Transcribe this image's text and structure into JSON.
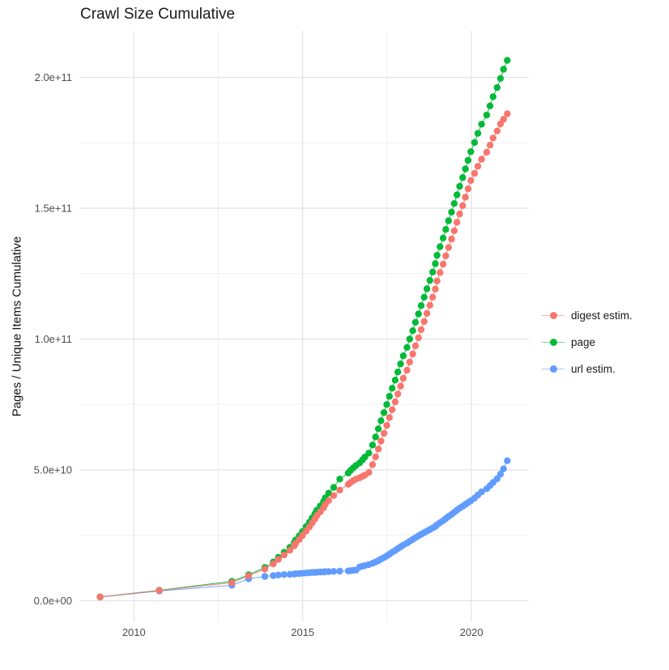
{
  "title": "Crawl Size Cumulative",
  "y_axis_title": "Pages / Unique Items Cumulative",
  "axes": {
    "x_ticks": [
      {
        "label": "2010",
        "year": 2010
      },
      {
        "label": "2015",
        "year": 2015
      },
      {
        "label": "2020",
        "year": 2020
      }
    ],
    "x_minor_years": [
      2012.5,
      2017.5
    ],
    "y_ticks": [
      {
        "label": "0.0e+00",
        "value": 0
      },
      {
        "label": "5.0e+10",
        "value": 50000000000.0
      },
      {
        "label": "1.0e+11",
        "value": 100000000000.0
      },
      {
        "label": "1.5e+11",
        "value": 150000000000.0
      },
      {
        "label": "2.0e+11",
        "value": 200000000000.0
      }
    ],
    "y_minor_values": [
      25000000000.0,
      75000000000.0,
      125000000000.0,
      175000000000.0
    ]
  },
  "legend": [
    {
      "label": "digest estim.",
      "color": "#F8766D"
    },
    {
      "label": "page",
      "color": "#00BA38"
    },
    {
      "label": "url estim.",
      "color": "#619CFF"
    }
  ],
  "colors": {
    "grid_major": "#e3e3e3",
    "grid_minor": "#f0f0f0",
    "axis_text": "#4d4d4d",
    "title_text": "#1a1a1a"
  },
  "chart_data": {
    "type": "line",
    "title": "Crawl Size Cumulative",
    "xlabel": "",
    "ylabel": "Pages / Unique Items Cumulative",
    "x_unit": "year (decimal)",
    "xlim": [
      2008.4,
      2021.7
    ],
    "ylim": [
      0,
      219000000000.0
    ],
    "grid": true,
    "legend_position": "right",
    "marker": "point",
    "series": [
      {
        "name": "url estim.",
        "color": "#619CFF",
        "points": [
          [
            2009.0,
            1400000000.0
          ],
          [
            2010.75,
            3700000000.0
          ],
          [
            2012.9,
            5900000000.0
          ],
          [
            2013.4,
            8400000000.0
          ],
          [
            2013.88,
            9300000000.0
          ],
          [
            2014.13,
            9600000000.0
          ],
          [
            2014.28,
            9800000000.0
          ],
          [
            2014.45,
            10000000000.0
          ],
          [
            2014.62,
            10100000000.0
          ],
          [
            2014.75,
            10200000000.0
          ],
          [
            2014.79,
            10300000000.0
          ],
          [
            2014.9,
            10400000000.0
          ],
          [
            2014.99,
            10500000000.0
          ],
          [
            2015.1,
            10600000000.0
          ],
          [
            2015.2,
            10700000000.0
          ],
          [
            2015.28,
            10800000000.0
          ],
          [
            2015.36,
            10800000000.0
          ],
          [
            2015.42,
            10900000000.0
          ],
          [
            2015.52,
            11000000000.0
          ],
          [
            2015.62,
            11000000000.0
          ],
          [
            2015.67,
            11100000000.0
          ],
          [
            2015.77,
            11100000000.0
          ],
          [
            2015.92,
            11200000000.0
          ],
          [
            2016.1,
            11300000000.0
          ],
          [
            2016.35,
            11400000000.0
          ],
          [
            2016.42,
            11500000000.0
          ],
          [
            2016.5,
            11600000000.0
          ],
          [
            2016.58,
            11700000000.0
          ],
          [
            2016.69,
            12900000000.0
          ],
          [
            2016.77,
            13200000000.0
          ],
          [
            2016.84,
            13400000000.0
          ],
          [
            2016.96,
            13800000000.0
          ],
          [
            2017.07,
            14300000000.0
          ],
          [
            2017.16,
            14800000000.0
          ],
          [
            2017.24,
            15300000000.0
          ],
          [
            2017.32,
            15900000000.0
          ],
          [
            2017.41,
            16500000000.0
          ],
          [
            2017.49,
            17100000000.0
          ],
          [
            2017.57,
            17800000000.0
          ],
          [
            2017.65,
            18500000000.0
          ],
          [
            2017.74,
            19200000000.0
          ],
          [
            2017.82,
            19900000000.0
          ],
          [
            2017.9,
            20600000000.0
          ],
          [
            2017.98,
            21300000000.0
          ],
          [
            2018.09,
            22000000000.0
          ],
          [
            2018.17,
            22700000000.0
          ],
          [
            2018.26,
            23400000000.0
          ],
          [
            2018.34,
            24100000000.0
          ],
          [
            2018.43,
            24800000000.0
          ],
          [
            2018.51,
            25400000000.0
          ],
          [
            2018.6,
            26000000000.0
          ],
          [
            2018.68,
            26600000000.0
          ],
          [
            2018.77,
            27200000000.0
          ],
          [
            2018.85,
            27800000000.0
          ],
          [
            2018.93,
            28400000000.0
          ],
          [
            2018.98,
            29000000000.0
          ],
          [
            2019.07,
            29800000000.0
          ],
          [
            2019.16,
            30600000000.0
          ],
          [
            2019.24,
            31400000000.0
          ],
          [
            2019.32,
            32200000000.0
          ],
          [
            2019.41,
            33000000000.0
          ],
          [
            2019.49,
            33800000000.0
          ],
          [
            2019.57,
            34600000000.0
          ],
          [
            2019.65,
            35400000000.0
          ],
          [
            2019.74,
            36100000000.0
          ],
          [
            2019.82,
            36800000000.0
          ],
          [
            2019.9,
            37500000000.0
          ],
          [
            2019.98,
            38200000000.0
          ],
          [
            2020.09,
            39200000000.0
          ],
          [
            2020.19,
            40400000000.0
          ],
          [
            2020.3,
            41600000000.0
          ],
          [
            2020.45,
            42800000000.0
          ],
          [
            2020.55,
            44000000000.0
          ],
          [
            2020.64,
            45200000000.0
          ],
          [
            2020.76,
            46600000000.0
          ],
          [
            2020.86,
            48400000000.0
          ],
          [
            2020.95,
            50400000000.0
          ],
          [
            2021.06,
            53500000000.0
          ]
        ]
      },
      {
        "name": "page",
        "color": "#00BA38",
        "points": [
          [
            2009.0,
            1500000000.0
          ],
          [
            2010.75,
            4000000000.0
          ],
          [
            2012.9,
            7400000000.0
          ],
          [
            2013.4,
            9900000000.0
          ],
          [
            2013.88,
            12700000000.0
          ],
          [
            2014.13,
            14800000000.0
          ],
          [
            2014.28,
            16600000000.0
          ],
          [
            2014.45,
            18500000000.0
          ],
          [
            2014.62,
            20400000000.0
          ],
          [
            2014.75,
            22200000000.0
          ],
          [
            2014.79,
            23200000000.0
          ],
          [
            2014.9,
            24800000000.0
          ],
          [
            2014.99,
            26400000000.0
          ],
          [
            2015.1,
            28300000000.0
          ],
          [
            2015.2,
            30000000000.0
          ],
          [
            2015.28,
            31600000000.0
          ],
          [
            2015.36,
            33200000000.0
          ],
          [
            2015.42,
            34600000000.0
          ],
          [
            2015.52,
            36200000000.0
          ],
          [
            2015.62,
            37900000000.0
          ],
          [
            2015.67,
            39300000000.0
          ],
          [
            2015.77,
            41100000000.0
          ],
          [
            2015.92,
            43300000000.0
          ],
          [
            2016.1,
            46500000000.0
          ],
          [
            2016.35,
            48800000000.0
          ],
          [
            2016.42,
            49800000000.0
          ],
          [
            2016.5,
            50800000000.0
          ],
          [
            2016.58,
            51700000000.0
          ],
          [
            2016.69,
            52700000000.0
          ],
          [
            2016.77,
            53800000000.0
          ],
          [
            2016.84,
            54900000000.0
          ],
          [
            2016.96,
            56400000000.0
          ],
          [
            2017.07,
            59500000000.0
          ],
          [
            2017.16,
            62600000000.0
          ],
          [
            2017.24,
            65700000000.0
          ],
          [
            2017.32,
            68800000000.0
          ],
          [
            2017.41,
            71900000000.0
          ],
          [
            2017.49,
            75000000000.0
          ],
          [
            2017.57,
            78100000000.0
          ],
          [
            2017.65,
            81200000000.0
          ],
          [
            2017.74,
            84300000000.0
          ],
          [
            2017.82,
            87400000000.0
          ],
          [
            2017.9,
            90500000000.0
          ],
          [
            2017.98,
            93600000000.0
          ],
          [
            2018.09,
            96800000000.0
          ],
          [
            2018.17,
            100000000000.0
          ],
          [
            2018.26,
            103200000000.0
          ],
          [
            2018.34,
            106400000000.0
          ],
          [
            2018.43,
            109600000000.0
          ],
          [
            2018.51,
            112800000000.0
          ],
          [
            2018.6,
            116000000000.0
          ],
          [
            2018.68,
            119200000000.0
          ],
          [
            2018.77,
            122400000000.0
          ],
          [
            2018.85,
            125600000000.0
          ],
          [
            2018.93,
            128800000000.0
          ],
          [
            2018.98,
            132000000000.0
          ],
          [
            2019.07,
            135300000000.0
          ],
          [
            2019.16,
            138600000000.0
          ],
          [
            2019.24,
            141900000000.0
          ],
          [
            2019.32,
            145200000000.0
          ],
          [
            2019.41,
            148500000000.0
          ],
          [
            2019.49,
            151800000000.0
          ],
          [
            2019.57,
            155100000000.0
          ],
          [
            2019.65,
            158400000000.0
          ],
          [
            2019.74,
            161700000000.0
          ],
          [
            2019.82,
            165000000000.0
          ],
          [
            2019.9,
            168300000000.0
          ],
          [
            2019.98,
            171600000000.0
          ],
          [
            2020.09,
            175100000000.0
          ],
          [
            2020.19,
            178600000000.0
          ],
          [
            2020.3,
            182100000000.0
          ],
          [
            2020.45,
            185600000000.0
          ],
          [
            2020.55,
            189100000000.0
          ],
          [
            2020.64,
            192600000000.0
          ],
          [
            2020.76,
            196100000000.0
          ],
          [
            2020.86,
            199600000000.0
          ],
          [
            2020.95,
            203100000000.0
          ],
          [
            2021.06,
            206500000000.0
          ]
        ]
      },
      {
        "name": "digest estim.",
        "color": "#F8766D",
        "points": [
          [
            2009.0,
            1500000000.0
          ],
          [
            2010.75,
            3900000000.0
          ],
          [
            2012.9,
            6900000000.0
          ],
          [
            2013.4,
            9500000000.0
          ],
          [
            2013.88,
            12100000000.0
          ],
          [
            2014.13,
            14100000000.0
          ],
          [
            2014.28,
            15800000000.0
          ],
          [
            2014.45,
            17500000000.0
          ],
          [
            2014.62,
            19300000000.0
          ],
          [
            2014.75,
            21000000000.0
          ],
          [
            2014.79,
            21900000000.0
          ],
          [
            2014.9,
            23400000000.0
          ],
          [
            2014.99,
            24900000000.0
          ],
          [
            2015.1,
            26600000000.0
          ],
          [
            2015.2,
            28200000000.0
          ],
          [
            2015.28,
            29700000000.0
          ],
          [
            2015.36,
            31200000000.0
          ],
          [
            2015.42,
            32500000000.0
          ],
          [
            2015.52,
            34000000000.0
          ],
          [
            2015.62,
            35500000000.0
          ],
          [
            2015.67,
            36800000000.0
          ],
          [
            2015.77,
            38300000000.0
          ],
          [
            2015.92,
            40200000000.0
          ],
          [
            2016.1,
            42300000000.0
          ],
          [
            2016.35,
            44500000000.0
          ],
          [
            2016.42,
            45200000000.0
          ],
          [
            2016.5,
            45900000000.0
          ],
          [
            2016.58,
            46500000000.0
          ],
          [
            2016.69,
            47000000000.0
          ],
          [
            2016.77,
            47500000000.0
          ],
          [
            2016.84,
            48000000000.0
          ],
          [
            2016.96,
            49000000000.0
          ],
          [
            2017.07,
            52000000000.0
          ],
          [
            2017.16,
            55000000000.0
          ],
          [
            2017.24,
            58000000000.0
          ],
          [
            2017.32,
            61000000000.0
          ],
          [
            2017.41,
            64000000000.0
          ],
          [
            2017.49,
            67000000000.0
          ],
          [
            2017.57,
            70000000000.0
          ],
          [
            2017.65,
            73000000000.0
          ],
          [
            2017.74,
            76000000000.0
          ],
          [
            2017.82,
            79000000000.0
          ],
          [
            2017.9,
            82000000000.0
          ],
          [
            2017.98,
            85000000000.0
          ],
          [
            2018.09,
            88100000000.0
          ],
          [
            2018.17,
            91200000000.0
          ],
          [
            2018.26,
            94300000000.0
          ],
          [
            2018.34,
            97400000000.0
          ],
          [
            2018.43,
            100500000000.0
          ],
          [
            2018.51,
            103600000000.0
          ],
          [
            2018.6,
            106700000000.0
          ],
          [
            2018.68,
            109800000000.0
          ],
          [
            2018.77,
            112900000000.0
          ],
          [
            2018.85,
            116000000000.0
          ],
          [
            2018.93,
            119100000000.0
          ],
          [
            2018.98,
            122200000000.0
          ],
          [
            2019.07,
            125400000000.0
          ],
          [
            2019.16,
            128600000000.0
          ],
          [
            2019.24,
            131800000000.0
          ],
          [
            2019.32,
            135000000000.0
          ],
          [
            2019.41,
            138200000000.0
          ],
          [
            2019.49,
            141400000000.0
          ],
          [
            2019.57,
            144600000000.0
          ],
          [
            2019.65,
            147800000000.0
          ],
          [
            2019.74,
            151000000000.0
          ],
          [
            2019.82,
            154200000000.0
          ],
          [
            2019.9,
            157400000000.0
          ],
          [
            2019.98,
            160600000000.0
          ],
          [
            2020.09,
            163300000000.0
          ],
          [
            2020.19,
            166000000000.0
          ],
          [
            2020.3,
            168700000000.0
          ],
          [
            2020.45,
            171400000000.0
          ],
          [
            2020.55,
            174100000000.0
          ],
          [
            2020.64,
            176800000000.0
          ],
          [
            2020.76,
            179500000000.0
          ],
          [
            2020.86,
            182200000000.0
          ],
          [
            2020.95,
            184000000000.0
          ],
          [
            2021.06,
            186100000000.0
          ]
        ]
      }
    ]
  }
}
